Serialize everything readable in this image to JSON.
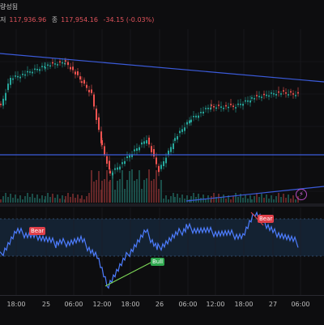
{
  "header": {
    "title": "량성됨",
    "labels": {
      "high": "저",
      "close": "종"
    },
    "low_value": "117,936.96",
    "close_value": "117,954.16",
    "change": "-34.15 (-0.03%)"
  },
  "colors": {
    "background": "#0d0d0f",
    "trend_line": "#3b5bdb",
    "osc_line": "#4d7dff",
    "bull_candle": "#26a69a",
    "bear_candle": "#ef5350",
    "bear_badge": "#e0404a",
    "bull_badge": "#2fa84f",
    "bull_divergence_line": "#7ed957",
    "bear_divergence_line": "#e0404a"
  },
  "signals": {
    "bear_1": "Bear",
    "bear_2": "Bear",
    "bull_1": "Bull"
  },
  "icons": {
    "lightning": "lightning-icon"
  },
  "time_axis": {
    "ticks": [
      "18:00",
      "25",
      "06:00",
      "12:00",
      "18:00",
      "26",
      "06:00",
      "12:00",
      "18:00",
      "27",
      "06:00"
    ]
  }
}
